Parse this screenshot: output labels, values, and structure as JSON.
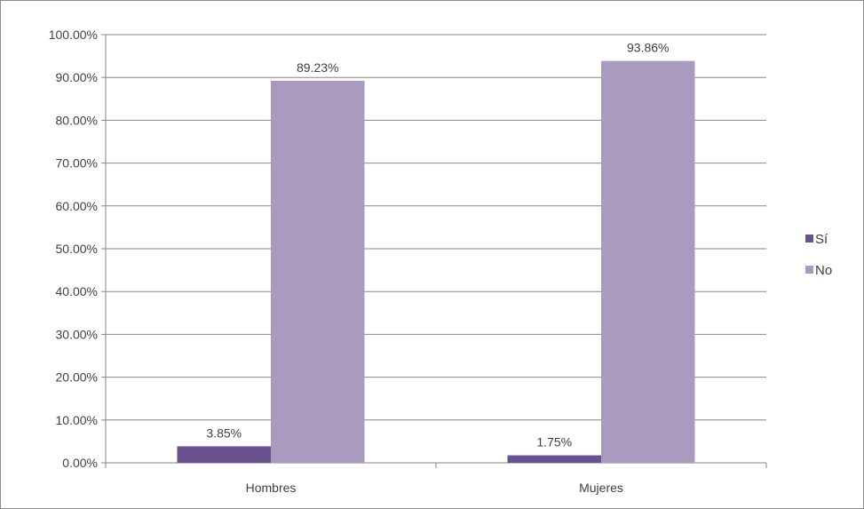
{
  "chart_data": {
    "type": "bar",
    "title": "",
    "xlabel": "",
    "ylabel": "",
    "categories": [
      "Hombres",
      "Mujeres"
    ],
    "series": [
      {
        "name": "Sí",
        "values": [
          3.85,
          1.75
        ],
        "labels": [
          "3.85%",
          "1.75%"
        ],
        "color": "#6a5290"
      },
      {
        "name": "No",
        "values": [
          89.23,
          93.86
        ],
        "labels": [
          "89.23%",
          "93.86%"
        ],
        "color": "#a99bc0"
      }
    ],
    "ylim": [
      0,
      100
    ],
    "yticks": [
      0,
      10,
      20,
      30,
      40,
      50,
      60,
      70,
      80,
      90,
      100
    ],
    "ytick_labels": [
      "0.00%",
      "10.00%",
      "20.00%",
      "30.00%",
      "40.00%",
      "50.00%",
      "60.00%",
      "70.00%",
      "80.00%",
      "90.00%",
      "100.00%"
    ],
    "grid": true,
    "legend_position": "right",
    "gridline_color": "#868686",
    "axis_color": "#868686"
  }
}
